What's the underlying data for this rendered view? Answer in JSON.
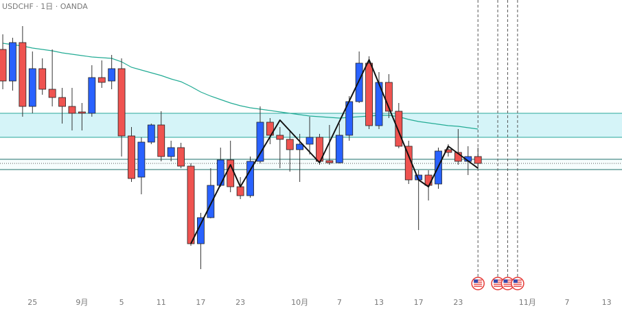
{
  "chart_data": {
    "type": "candlestick",
    "title": "USDCHF · 1日 · OANDA",
    "up_color": "#2962ff",
    "down_color": "#ef5350",
    "open": [
      0.8728,
      0.8682,
      0.8738,
      0.8645,
      0.87,
      0.867,
      0.8658,
      0.8645,
      0.8637,
      0.8635,
      0.8687,
      0.8682,
      0.87,
      0.8602,
      0.8542,
      0.8593,
      0.8618,
      0.8572,
      0.8585,
      0.8558,
      0.8445,
      0.8483,
      0.853,
      0.8567,
      0.8528,
      0.8515,
      0.8565,
      0.8622,
      0.8603,
      0.8597,
      0.8582,
      0.859,
      0.86,
      0.8566,
      0.8563,
      0.8603,
      0.8652,
      0.8708,
      0.8617,
      0.868,
      0.8638,
      0.8587,
      0.8538,
      0.8545,
      0.8532,
      0.8582,
      0.8578,
      0.8565,
      0.8572
    ],
    "high": [
      0.875,
      0.8745,
      0.8762,
      0.8725,
      0.8715,
      0.8728,
      0.8672,
      0.8672,
      0.865,
      0.8705,
      0.8712,
      0.872,
      0.8715,
      0.8615,
      0.86,
      0.862,
      0.8638,
      0.8595,
      0.8592,
      0.8562,
      0.849,
      0.8555,
      0.8585,
      0.8595,
      0.8542,
      0.8572,
      0.8645,
      0.8628,
      0.8615,
      0.861,
      0.8605,
      0.863,
      0.8605,
      0.8618,
      0.862,
      0.866,
      0.8725,
      0.8718,
      0.8695,
      0.8692,
      0.865,
      0.8595,
      0.8552,
      0.8552,
      0.8585,
      0.859,
      0.8612,
      0.8587,
      0.8585
    ],
    "low": [
      0.867,
      0.8668,
      0.863,
      0.8635,
      0.8662,
      0.8645,
      0.862,
      0.861,
      0.861,
      0.863,
      0.8672,
      0.867,
      0.8572,
      0.8535,
      0.8517,
      0.859,
      0.8565,
      0.8565,
      0.8555,
      0.8442,
      0.8408,
      0.8482,
      0.8528,
      0.852,
      0.851,
      0.8512,
      0.8562,
      0.859,
      0.8555,
      0.855,
      0.8535,
      0.8575,
      0.856,
      0.856,
      0.8562,
      0.8595,
      0.865,
      0.8612,
      0.8612,
      0.8628,
      0.8584,
      0.8532,
      0.8465,
      0.8508,
      0.8525,
      0.8572,
      0.856,
      0.8545,
      0.8555
    ],
    "close": [
      0.8682,
      0.8738,
      0.8645,
      0.87,
      0.867,
      0.8658,
      0.8645,
      0.8635,
      0.8635,
      0.8687,
      0.868,
      0.87,
      0.8602,
      0.854,
      0.8593,
      0.8618,
      0.8572,
      0.8585,
      0.8558,
      0.8445,
      0.8483,
      0.853,
      0.8567,
      0.8528,
      0.8515,
      0.8565,
      0.8622,
      0.8603,
      0.8597,
      0.8582,
      0.859,
      0.86,
      0.8565,
      0.8563,
      0.8603,
      0.8652,
      0.8708,
      0.8617,
      0.868,
      0.8638,
      0.8587,
      0.8538,
      0.8545,
      0.853,
      0.858,
      0.8578,
      0.8565,
      0.8572,
      0.8562
    ],
    "ma": {
      "color": "#22ab94",
      "values": [
        0.8737,
        0.8735,
        0.8733,
        0.873,
        0.8728,
        0.8726,
        0.8723,
        0.8721,
        0.8719,
        0.8717,
        0.8716,
        0.8715,
        0.871,
        0.8702,
        0.8698,
        0.8694,
        0.869,
        0.8685,
        0.8681,
        0.8674,
        0.8666,
        0.866,
        0.8655,
        0.865,
        0.8646,
        0.8643,
        0.8641,
        0.8639,
        0.8637,
        0.8635,
        0.8633,
        0.8631,
        0.863,
        0.8629,
        0.8628,
        0.8629,
        0.863,
        0.8631,
        0.8632,
        0.8632,
        0.863,
        0.8626,
        0.8623,
        0.8621,
        0.8619,
        0.8617,
        0.8616,
        0.8614,
        0.8612
      ]
    },
    "zigzag": {
      "color": "#111111",
      "x": [
        19,
        23,
        24,
        28,
        32,
        37,
        42,
        43,
        45,
        48
      ],
      "values": [
        0.8445,
        0.856,
        0.8528,
        0.8625,
        0.8563,
        0.8713,
        0.8538,
        0.8528,
        0.8587,
        0.8555
      ]
    },
    "zones": [
      {
        "from": 0.8635,
        "to": 0.86
      },
      {
        "from": 0.8568,
        "to": 0.8553,
        "mid": 0.8562
      }
    ],
    "events": [
      48,
      50,
      51,
      52
    ],
    "xlim": [
      -0.28,
      62.55
    ],
    "ylim": [
      0.837,
      0.88
    ],
    "xticks": [
      {
        "value": 3,
        "label": "25"
      },
      {
        "value": 8,
        "label": "9月"
      },
      {
        "value": 12,
        "label": "5"
      },
      {
        "value": 16,
        "label": "11"
      },
      {
        "value": 20,
        "label": "17"
      },
      {
        "value": 24,
        "label": "23"
      },
      {
        "value": 30,
        "label": "10月"
      },
      {
        "value": 34,
        "label": "7"
      },
      {
        "value": 38,
        "label": "13"
      },
      {
        "value": 42,
        "label": "17"
      },
      {
        "value": 46,
        "label": "23"
      },
      {
        "value": 53,
        "label": "11月"
      },
      {
        "value": 57,
        "label": "7"
      },
      {
        "value": 61,
        "label": "13"
      }
    ]
  }
}
